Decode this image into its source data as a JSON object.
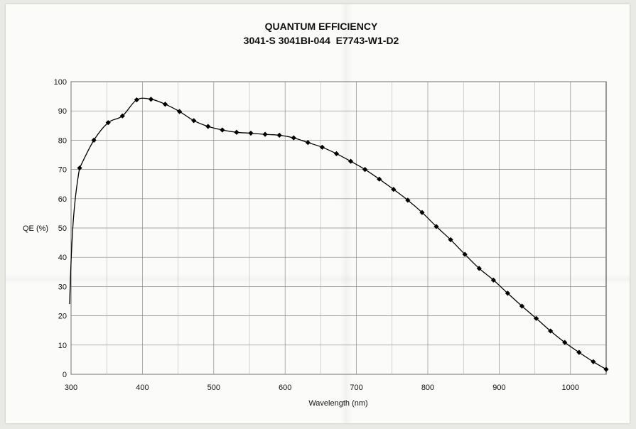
{
  "chart_data": {
    "type": "line",
    "title": "QUANTUM EFFICIENCY",
    "subtitle": "3041-S 3041BI-044  E7743-W1-D2",
    "xlabel": "Wavelength (nm)",
    "ylabel": "QE (%)",
    "xlim": [
      300,
      1050
    ],
    "ylim": [
      0,
      100
    ],
    "xticks": [
      300,
      400,
      500,
      600,
      700,
      800,
      900,
      1000
    ],
    "yticks": [
      0,
      10,
      20,
      30,
      40,
      50,
      60,
      70,
      80,
      90,
      100
    ],
    "grid": true,
    "legend": "none",
    "series": [
      {
        "color": "#000000",
        "marker": "diamond",
        "x": [
          312,
          332,
          352,
          372,
          392,
          412,
          432,
          452,
          472,
          492,
          512,
          532,
          552,
          572,
          592,
          612,
          632,
          652,
          672,
          692,
          712,
          732,
          752,
          772,
          792,
          812,
          832,
          852,
          872,
          892,
          912,
          932,
          952,
          972,
          992,
          1012,
          1032,
          1050
        ],
        "y": [
          70.5,
          80.0,
          86.0,
          88.3,
          93.8,
          94.0,
          92.3,
          89.8,
          86.7,
          84.7,
          83.5,
          82.7,
          82.4,
          82.0,
          81.7,
          80.8,
          79.2,
          77.6,
          75.4,
          72.8,
          70.0,
          66.7,
          63.2,
          59.5,
          55.3,
          50.5,
          46.0,
          41.0,
          36.2,
          32.2,
          27.7,
          23.3,
          19.1,
          14.8,
          10.9,
          7.5,
          4.3,
          1.7
        ]
      }
    ]
  }
}
